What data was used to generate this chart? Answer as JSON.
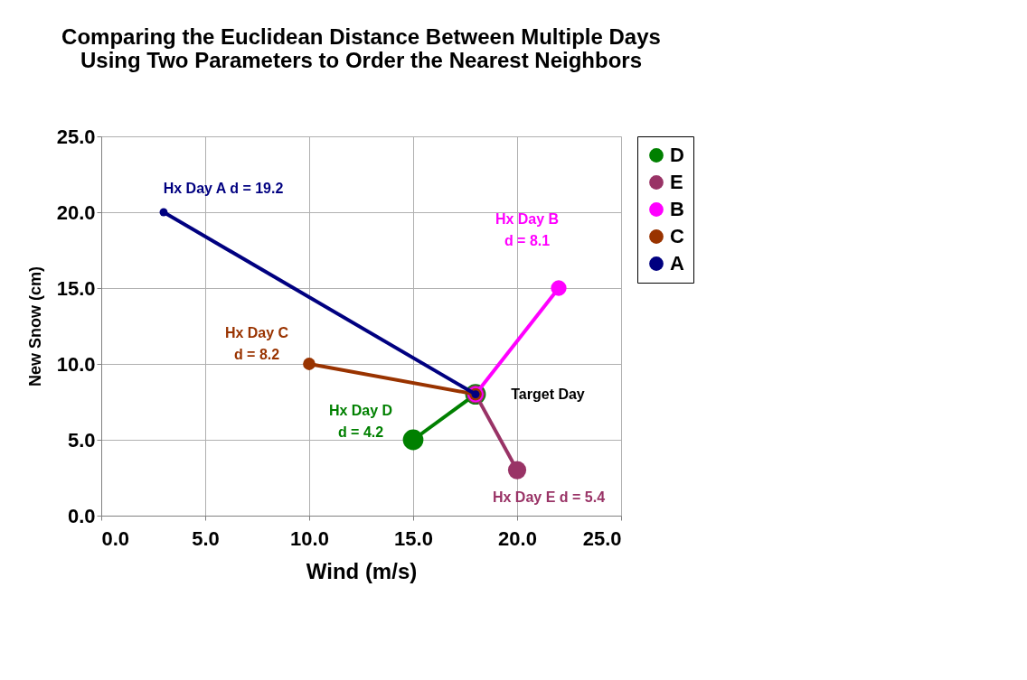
{
  "chart_data": {
    "type": "line",
    "title": "Comparing the Euclidean Distance Between Multiple Days\nUsing Two Parameters to Order the Nearest Neighbors",
    "xlabel": "Wind (m/s)",
    "ylabel": "New Snow (cm)",
    "series": [
      {
        "name": "D",
        "color": "#008000",
        "x": [
          18,
          15
        ],
        "values": [
          8,
          5
        ]
      },
      {
        "name": "E",
        "color": "#993366",
        "x": [
          18,
          20
        ],
        "values": [
          8,
          3
        ]
      },
      {
        "name": "B",
        "color": "#ff00ff",
        "x": [
          18,
          22
        ],
        "values": [
          8,
          15
        ]
      },
      {
        "name": "C",
        "color": "#993300",
        "x": [
          18,
          10
        ],
        "values": [
          8,
          10
        ]
      },
      {
        "name": "A",
        "color": "#000080",
        "x": [
          18,
          3
        ],
        "values": [
          8,
          20
        ]
      }
    ],
    "annotations": [
      {
        "text": "Hx Day A d = 19.2",
        "x": 3,
        "y": 20
      },
      {
        "text": "Hx Day B\nd = 8.1",
        "x": 22,
        "y": 15
      },
      {
        "text": "Hx Day C\nd = 8.2",
        "x": 10,
        "y": 10
      },
      {
        "text": "Hx Day D\nd = 4.2",
        "x": 15,
        "y": 5
      },
      {
        "text": "Hx Day E d = 5.4",
        "x": 20,
        "y": 3
      },
      {
        "text": "Target Day",
        "x": 18,
        "y": 8
      }
    ],
    "xlim": [
      0,
      25
    ],
    "ylim": [
      0,
      25
    ],
    "xticks": [
      {
        "value": 0,
        "label": "0.0"
      },
      {
        "value": 5,
        "label": "5.0"
      },
      {
        "value": 10,
        "label": "10.0"
      },
      {
        "value": 15,
        "label": "15.0"
      },
      {
        "value": 20,
        "label": "20.0"
      },
      {
        "value": 25,
        "label": "25.0"
      }
    ],
    "yticks": [
      {
        "value": 0,
        "label": "0.0"
      },
      {
        "value": 5,
        "label": "5.0"
      },
      {
        "value": 10,
        "label": "10.0"
      },
      {
        "value": 15,
        "label": "15.0"
      },
      {
        "value": 20,
        "label": "20.0"
      },
      {
        "value": 25,
        "label": "25.0"
      }
    ],
    "grid": true,
    "legend": "top right",
    "marker": "circle",
    "line_style": "solid"
  }
}
